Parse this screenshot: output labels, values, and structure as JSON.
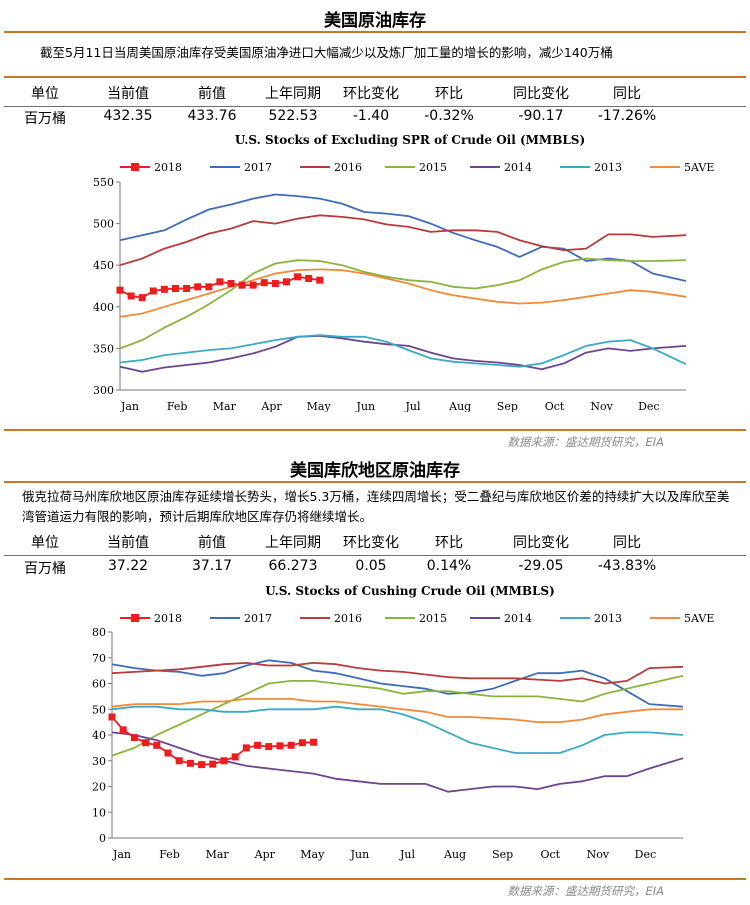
{
  "sections": [
    {
      "title": "美国原油库存",
      "description": "截至5月11日当周美国原油库存受美国原油净进口大幅减少以及炼厂加工量的增长的影响，减少140万桶",
      "stats": {
        "headers": [
          "单位",
          "当前值",
          "前值",
          "上年同期",
          "环比变化",
          "环比",
          "同比变化",
          "同比"
        ],
        "values": [
          "百万桶",
          "432.35",
          "433.76",
          "522.53",
          "-1.40",
          "-0.32%",
          "-90.17",
          "-17.26%"
        ]
      },
      "source": "数据来源：盛达期货研究，EIA"
    },
    {
      "title": "美国库欣地区原油库存",
      "description": "俄克拉荷马州库欣地区原油库存延续增长势头，增长5.3万桶，连续四周增长；受二叠纪与库欣地区价差的持续扩大以及库欣至美湾管道运力有限的影响，预计后期库欣地区库存仍将继续增长。",
      "stats": {
        "headers": [
          "单位",
          "当前值",
          "前值",
          "上年同期",
          "环比变化",
          "环比",
          "同比变化",
          "同比"
        ],
        "values": [
          "百万桶",
          "37.22",
          "37.17",
          "66.273",
          "0.05",
          "0.14%",
          "-29.05",
          "-43.83%"
        ]
      },
      "source": "数据来源：盛达期货研究，EIA"
    }
  ],
  "chart_data": [
    {
      "type": "line",
      "title": "U.S.  Stocks of Excluding SPR of Crude Oil (MMBLS)",
      "x_ticks": [
        "Jan",
        "Feb",
        "Mar",
        "Apr",
        "May",
        "Jun",
        "Jul",
        "Aug",
        "Sep",
        "Oct",
        "Nov",
        "Dec"
      ],
      "x_range": [
        0,
        51
      ],
      "y_ticks": [
        300,
        350,
        400,
        450,
        500,
        550
      ],
      "ylim": [
        300,
        550
      ],
      "legend_position": "top",
      "series": [
        {
          "name": "2018",
          "color": "#ee1c1c",
          "marker": "square",
          "x": [
            0,
            1,
            2,
            3,
            4,
            5,
            6,
            7,
            8,
            9,
            10,
            11,
            12,
            13,
            14,
            15,
            16,
            17,
            18
          ],
          "y": [
            420,
            413,
            411,
            419,
            421,
            422,
            422,
            424,
            424,
            430,
            428,
            426,
            426,
            429,
            428,
            430,
            436,
            434,
            432
          ]
        },
        {
          "name": "2017",
          "color": "#3d6db8",
          "x": [
            0,
            2,
            4,
            6,
            8,
            10,
            12,
            14,
            16,
            18,
            20,
            22,
            24,
            26,
            28,
            30,
            32,
            34,
            36,
            38,
            40,
            42,
            44,
            46,
            48,
            51
          ],
          "y": [
            480,
            486,
            492,
            505,
            517,
            523,
            530,
            535,
            533,
            530,
            524,
            514,
            512,
            509,
            500,
            489,
            480,
            472,
            460,
            472,
            470,
            455,
            458,
            455,
            440,
            431
          ]
        },
        {
          "name": "2016",
          "color": "#bb3a3a",
          "x": [
            0,
            2,
            4,
            6,
            8,
            10,
            12,
            14,
            16,
            18,
            20,
            22,
            24,
            26,
            28,
            30,
            32,
            34,
            36,
            38,
            40,
            42,
            44,
            46,
            48,
            51
          ],
          "y": [
            450,
            458,
            470,
            478,
            488,
            494,
            503,
            500,
            506,
            510,
            508,
            505,
            499,
            496,
            490,
            492,
            492,
            490,
            480,
            473,
            468,
            470,
            487,
            487,
            484,
            486
          ]
        },
        {
          "name": "2015",
          "color": "#8ab53c",
          "x": [
            0,
            2,
            4,
            6,
            8,
            10,
            12,
            14,
            16,
            18,
            20,
            22,
            24,
            26,
            28,
            30,
            32,
            34,
            36,
            38,
            40,
            42,
            44,
            46,
            48,
            51
          ],
          "y": [
            350,
            360,
            375,
            388,
            403,
            420,
            440,
            452,
            456,
            455,
            450,
            442,
            436,
            432,
            430,
            424,
            422,
            426,
            432,
            445,
            454,
            458,
            456,
            455,
            455,
            456
          ]
        },
        {
          "name": "2014",
          "color": "#6f4393",
          "x": [
            0,
            2,
            4,
            6,
            8,
            10,
            12,
            14,
            16,
            18,
            20,
            22,
            24,
            26,
            28,
            30,
            32,
            34,
            36,
            38,
            40,
            42,
            44,
            46,
            48,
            51
          ],
          "y": [
            328,
            322,
            327,
            330,
            333,
            338,
            344,
            352,
            364,
            365,
            362,
            358,
            355,
            353,
            345,
            338,
            335,
            333,
            330,
            325,
            332,
            345,
            350,
            347,
            350,
            353
          ]
        },
        {
          "name": "2013",
          "color": "#3aaac4",
          "x": [
            0,
            2,
            4,
            6,
            8,
            10,
            12,
            14,
            16,
            18,
            20,
            22,
            24,
            26,
            28,
            30,
            32,
            34,
            36,
            38,
            40,
            42,
            44,
            46,
            48,
            51
          ],
          "y": [
            333,
            336,
            342,
            345,
            348,
            350,
            355,
            360,
            364,
            366,
            364,
            364,
            358,
            348,
            338,
            334,
            332,
            330,
            328,
            332,
            342,
            353,
            358,
            360,
            350,
            331
          ]
        },
        {
          "name": "5AVE",
          "color": "#f28a3a",
          "x": [
            0,
            2,
            4,
            6,
            8,
            10,
            12,
            14,
            16,
            18,
            20,
            22,
            24,
            26,
            28,
            30,
            32,
            34,
            36,
            38,
            40,
            42,
            44,
            46,
            48,
            51
          ],
          "y": [
            388,
            392,
            400,
            408,
            416,
            424,
            432,
            440,
            444,
            445,
            444,
            440,
            434,
            428,
            420,
            414,
            410,
            406,
            404,
            405,
            408,
            412,
            416,
            420,
            418,
            412
          ]
        }
      ]
    },
    {
      "type": "line",
      "title": "U.S.  Stocks of Cushing  Crude Oil (MMBLS)",
      "x_ticks": [
        "Jan",
        "Feb",
        "Mar",
        "Apr",
        "May",
        "Jun",
        "Jul",
        "Aug",
        "Sep",
        "Oct",
        "Nov",
        "Dec"
      ],
      "x_range": [
        0,
        51
      ],
      "y_ticks": [
        0,
        10,
        20,
        30,
        40,
        50,
        60,
        70,
        80
      ],
      "ylim": [
        0,
        80
      ],
      "legend_position": "top",
      "series": [
        {
          "name": "2018",
          "color": "#ee1c1c",
          "marker": "square",
          "x": [
            0,
            1,
            2,
            3,
            4,
            5,
            6,
            7,
            8,
            9,
            10,
            11,
            12,
            13,
            14,
            15,
            16,
            17,
            18
          ],
          "y": [
            47,
            42,
            39,
            37,
            36,
            33,
            30,
            29,
            28.5,
            28.7,
            30,
            31.5,
            35,
            36,
            35.5,
            35.8,
            36,
            37,
            37.2
          ]
        },
        {
          "name": "2017",
          "color": "#3d6db8",
          "x": [
            0,
            2,
            4,
            6,
            8,
            10,
            12,
            14,
            16,
            18,
            20,
            22,
            24,
            26,
            28,
            30,
            32,
            34,
            36,
            38,
            40,
            42,
            44,
            46,
            48,
            51
          ],
          "y": [
            67.5,
            66,
            65,
            64.5,
            63,
            64,
            67,
            69,
            68,
            65,
            64,
            62,
            60,
            59,
            58,
            56,
            56.5,
            58,
            61,
            64,
            64,
            65,
            62,
            57,
            52,
            51
          ]
        },
        {
          "name": "2016",
          "color": "#bb3a3a",
          "x": [
            0,
            2,
            4,
            6,
            8,
            10,
            12,
            14,
            16,
            18,
            20,
            22,
            24,
            26,
            28,
            30,
            32,
            34,
            36,
            38,
            40,
            42,
            44,
            46,
            48,
            51
          ],
          "y": [
            64,
            64.5,
            65,
            65.5,
            66.5,
            67.5,
            68,
            67,
            67,
            68,
            67.5,
            66,
            65,
            64.5,
            63.5,
            62.5,
            62,
            62,
            62,
            61.5,
            61,
            62,
            60,
            61,
            66,
            66.5
          ]
        },
        {
          "name": "2015",
          "color": "#8ab53c",
          "x": [
            0,
            2,
            4,
            6,
            8,
            10,
            12,
            14,
            16,
            18,
            20,
            22,
            24,
            26,
            28,
            30,
            32,
            34,
            36,
            38,
            40,
            42,
            44,
            46,
            48,
            51
          ],
          "y": [
            32,
            35,
            40,
            44,
            48,
            52,
            56,
            60,
            61,
            61,
            60,
            59,
            58,
            56,
            57,
            57,
            56,
            55,
            55,
            55,
            54,
            53,
            56,
            58,
            60,
            63
          ]
        },
        {
          "name": "2014",
          "color": "#6f4393",
          "x": [
            0,
            2,
            4,
            6,
            8,
            10,
            12,
            14,
            16,
            18,
            20,
            22,
            24,
            26,
            28,
            30,
            32,
            34,
            36,
            38,
            40,
            42,
            44,
            46,
            48,
            51
          ],
          "y": [
            41,
            40,
            38,
            35,
            32,
            30,
            28,
            27,
            26,
            25,
            23,
            22,
            21,
            21,
            21,
            18,
            19,
            20,
            20,
            19,
            21,
            22,
            24,
            24,
            27,
            31
          ]
        },
        {
          "name": "2013",
          "color": "#3aaac4",
          "x": [
            0,
            2,
            4,
            6,
            8,
            10,
            12,
            14,
            16,
            18,
            20,
            22,
            24,
            26,
            28,
            30,
            32,
            34,
            36,
            38,
            40,
            42,
            44,
            46,
            48,
            51
          ],
          "y": [
            50,
            51,
            51,
            50,
            50,
            49,
            49,
            50,
            50,
            50,
            51,
            50,
            50,
            48,
            45,
            41,
            37,
            35,
            33,
            33,
            33,
            36,
            40,
            41,
            41,
            40
          ]
        },
        {
          "name": "5AVE",
          "color": "#f28a3a",
          "x": [
            0,
            2,
            4,
            6,
            8,
            10,
            12,
            14,
            16,
            18,
            20,
            22,
            24,
            26,
            28,
            30,
            32,
            34,
            36,
            38,
            40,
            42,
            44,
            46,
            48,
            51
          ],
          "y": [
            51,
            52,
            52,
            52,
            53,
            53,
            54,
            54,
            54,
            53,
            53,
            52,
            51,
            50,
            49,
            47,
            47,
            46.5,
            46,
            45,
            45,
            46,
            48,
            49,
            50,
            50
          ]
        }
      ]
    }
  ]
}
